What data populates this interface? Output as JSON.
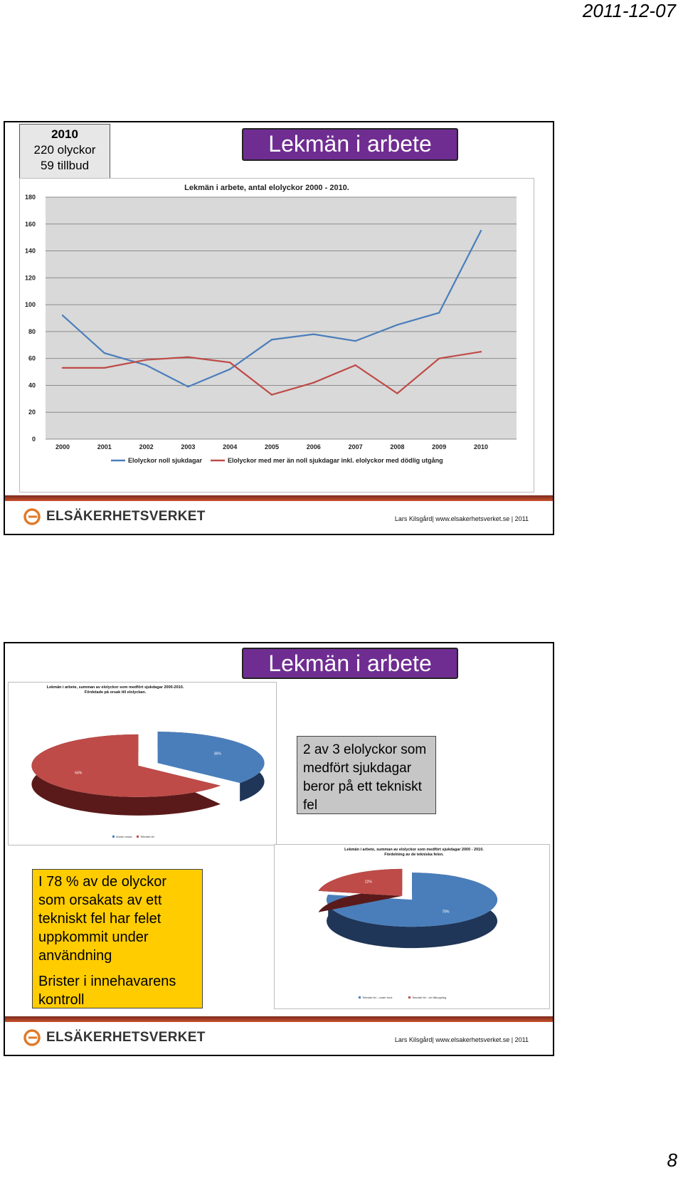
{
  "header": {
    "date": "2011-12-07"
  },
  "page_number": "8",
  "slide1": {
    "stat": {
      "year": "2010",
      "accidents": "220 olyckor",
      "incidents": "59 tillbud"
    },
    "title": "Lekmän i arbete",
    "footer": {
      "logo_text": "ELSÄKERHETSVERKET",
      "credit": "Lars Kilsgård| www.elsakerhetsverket.se | 2011"
    }
  },
  "slide2": {
    "title": "Lekmän i arbete",
    "note_gray": "2 av 3 elolyckor som medfört sjukdagar beror på ett tekniskt fel",
    "note_yellow_1": "I 78 % av de olyckor som orsakats av ett tekniskt fel har felet uppkommit under användning",
    "note_yellow_2": "Brister i innehavarens kontroll",
    "footer": {
      "logo_text": "ELSÄKERHETSVERKET",
      "credit": "Lars Kilsgård| www.elsakerhetsverket.se | 2011"
    }
  },
  "colors": {
    "blue": "#4a7ebb",
    "red": "#be4b48",
    "purple": "#6f2d91",
    "yellow": "#ffcc00",
    "brand": "#c9512c"
  },
  "chart_data": [
    {
      "type": "line",
      "title": "Lekmän i arbete, antal elolyckor 2000 - 2010.",
      "x": [
        "2000",
        "2001",
        "2002",
        "2003",
        "2004",
        "2005",
        "2006",
        "2007",
        "2008",
        "2009",
        "2010"
      ],
      "ylim": [
        0,
        180
      ],
      "yticks": [
        "0",
        "20",
        "40",
        "60",
        "80",
        "100",
        "120",
        "140",
        "160",
        "180"
      ],
      "grid": true,
      "legend_position": "bottom",
      "series": [
        {
          "name": "Elolyckor noll sjukdagar",
          "color": "#4a7ebb",
          "values": [
            92,
            64,
            55,
            39,
            52,
            74,
            78,
            73,
            85,
            94,
            155
          ]
        },
        {
          "name": "Elolyckor med mer än noll sjukdagar inkl. elolyckor med dödlig utgång",
          "color": "#be4b48",
          "values": [
            53,
            53,
            59,
            61,
            57,
            33,
            42,
            55,
            34,
            60,
            65
          ]
        }
      ]
    },
    {
      "type": "pie",
      "title": "Lekmän i arbete, summan av elolyckor som medfört sjukdagar 2000-2010.",
      "subtitle": "Fördelade på orsak till elolyckan.",
      "legend_position": "bottom",
      "slices": [
        {
          "name": "Tekniskt fel",
          "label": "64%",
          "value": 64,
          "color": "#be4b48"
        },
        {
          "name": "Annan orsak",
          "label": "36%",
          "value": 36,
          "color": "#4a7ebb"
        }
      ]
    },
    {
      "type": "pie",
      "title": "Lekmän i arbete, summan av elolyckor som medfört sjukdagar 2000 - 2010.",
      "subtitle": "Fördelning av de tekniska felen.",
      "legend_position": "bottom",
      "slices": [
        {
          "name": "Tekniskt fel - under bruk",
          "label": "78%",
          "value": 78,
          "color": "#4a7ebb"
        },
        {
          "name": "Tekniskt fel - vid tillkoppling",
          "label": "22%",
          "value": 22,
          "color": "#be4b48"
        }
      ]
    }
  ]
}
